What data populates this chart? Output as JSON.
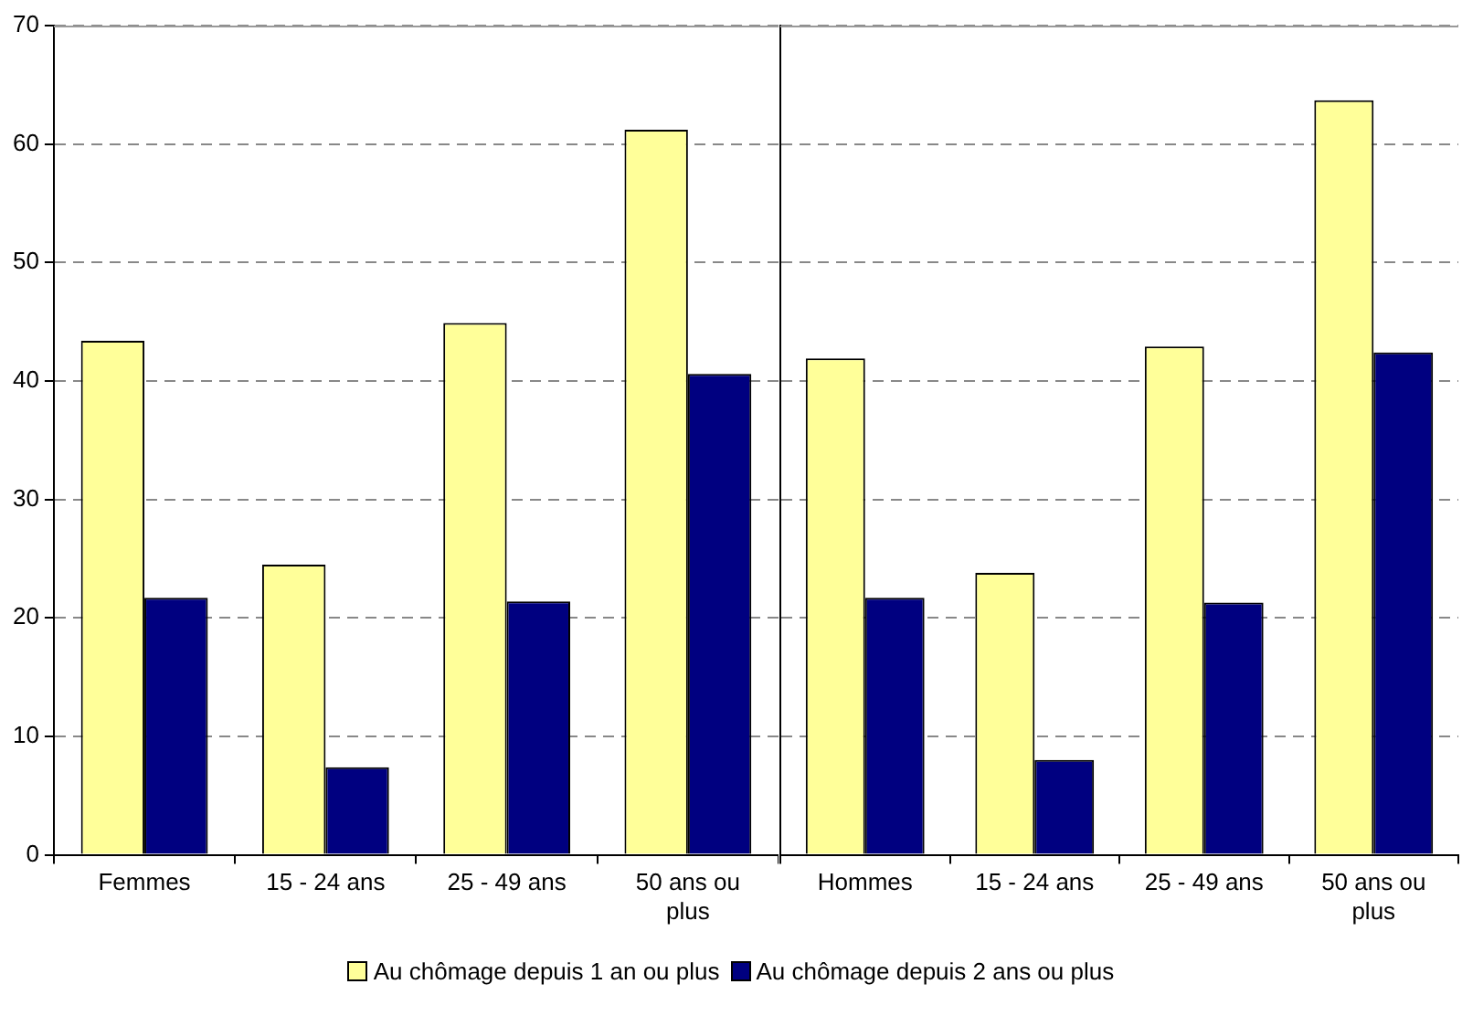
{
  "chart_data": [
    {
      "type": "bar",
      "categories": [
        "Femmes",
        "15 - 24 ans",
        "25 - 49 ans",
        "50 ans ou plus"
      ],
      "series": [
        {
          "name": "Au chômage depuis 1 an ou plus",
          "color": "#ffff99",
          "values": [
            43.4,
            24.5,
            44.9,
            61.2
          ]
        },
        {
          "name": "Au chômage depuis 2 ans ou plus",
          "color": "#000080",
          "values": [
            21.7,
            7.4,
            21.4,
            40.6
          ]
        }
      ],
      "ylim": [
        0,
        70
      ],
      "yticks": [
        0,
        10,
        20,
        30,
        40,
        50,
        60,
        70
      ],
      "grid": "y",
      "legend": "bottom"
    },
    {
      "type": "bar",
      "categories": [
        "Hommes",
        "15 - 24 ans",
        "25 - 49 ans",
        "50 ans ou plus"
      ],
      "series": [
        {
          "color": "#ffff99",
          "values": [
            41.9,
            23.8,
            42.9,
            63.7
          ]
        },
        {
          "color": "#000080",
          "values": [
            21.7,
            8.0,
            21.3,
            42.4
          ]
        }
      ],
      "ylim": [
        0,
        70
      ],
      "yticks": [
        0,
        10,
        20,
        30,
        40,
        50,
        60,
        70
      ],
      "grid": "y",
      "tick_labels": "x"
    }
  ]
}
